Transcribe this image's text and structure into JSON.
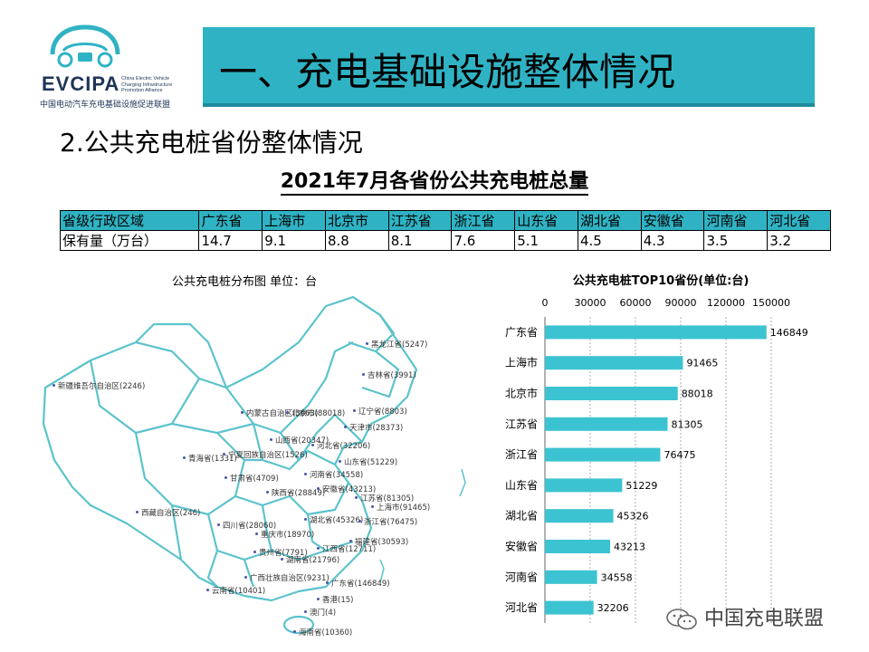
{
  "logo": {
    "brand": "EVCIPA",
    "english": "China Electric Vehicle Charging Infrastructure Promotion Alliance",
    "chinese": "中国电动汽车充电基础设施促进联盟"
  },
  "banner": {
    "title": "一、充电基础设施整体情况"
  },
  "subtitle": "2.公共充电桩省份整体情况",
  "table": {
    "title": "2021年7月各省份公共充电桩总量",
    "row_header_1": "省级行政区域",
    "row_header_2": "保有量（万台）",
    "provinces": [
      "广东省",
      "上海市",
      "北京市",
      "江苏省",
      "浙江省",
      "山东省",
      "湖北省",
      "安徽省",
      "河南省",
      "河北省"
    ],
    "values": [
      "14.7",
      "9.1",
      "8.8",
      "8.1",
      "7.6",
      "5.1",
      "4.5",
      "4.3",
      "3.5",
      "3.2"
    ]
  },
  "map": {
    "title": "公共充电桩分布图    单位：台",
    "labels": [
      {
        "id": "heilongjiang",
        "text": "黑龙江省(5247)"
      },
      {
        "id": "jilin",
        "text": "吉林省(3991)"
      },
      {
        "id": "xinjiang",
        "text": "新疆维吾尔自治区(2246)"
      },
      {
        "id": "neimenggu",
        "text": "内蒙古自治区(3663)"
      },
      {
        "id": "beijing",
        "text": "北京市(88018)"
      },
      {
        "id": "liaoning",
        "text": "辽宁省(8803)"
      },
      {
        "id": "tianjin",
        "text": "天津市(28373)"
      },
      {
        "id": "shanxi",
        "text": "山西省(20347)"
      },
      {
        "id": "hebei",
        "text": "河北省(32206)"
      },
      {
        "id": "qinghai",
        "text": "青海省(1331)"
      },
      {
        "id": "ningxia",
        "text": "宁夏回族自治区(1526)"
      },
      {
        "id": "shandong",
        "text": "山东省(51229)"
      },
      {
        "id": "gansu",
        "text": "甘肃省(4709)"
      },
      {
        "id": "henan",
        "text": "河南省(34558)"
      },
      {
        "id": "shaanxi",
        "text": "陕西省(28849)"
      },
      {
        "id": "anhui",
        "text": "安徽省(43213)"
      },
      {
        "id": "jiangsu",
        "text": "江苏省(81305)"
      },
      {
        "id": "shanghai",
        "text": "上海市(91465)"
      },
      {
        "id": "xizang",
        "text": "西藏自治区(246)"
      },
      {
        "id": "hubei",
        "text": "湖北省(45326)"
      },
      {
        "id": "zhejiang",
        "text": "浙江省(76475)"
      },
      {
        "id": "sichuan",
        "text": "四川省(28060)"
      },
      {
        "id": "chongqing",
        "text": "重庆市(18970)"
      },
      {
        "id": "fujian",
        "text": "福建省(30593)"
      },
      {
        "id": "guizhou",
        "text": "贵州省(7791)"
      },
      {
        "id": "jiangxi",
        "text": "江西省(12711)"
      },
      {
        "id": "hunan",
        "text": "湖南省(21796)"
      },
      {
        "id": "guangxi",
        "text": "广西壮族自治区(9231)"
      },
      {
        "id": "guangdong",
        "text": "广东省(146849)"
      },
      {
        "id": "yunnan",
        "text": "云南省(10401)"
      },
      {
        "id": "xianggang",
        "text": "香港(15)"
      },
      {
        "id": "aomen",
        "text": "澳门(4)"
      },
      {
        "id": "hainan",
        "text": "海南省(10360)"
      }
    ]
  },
  "chart_data": {
    "type": "bar",
    "orientation": "horizontal",
    "title": "公共充电桩TOP10省份(单位:台)",
    "categories": [
      "广东省",
      "上海市",
      "北京市",
      "江苏省",
      "浙江省",
      "山东省",
      "湖北省",
      "安徽省",
      "河南省",
      "河北省"
    ],
    "values": [
      146849,
      91465,
      88018,
      81305,
      76475,
      51229,
      45326,
      43213,
      34558,
      32206
    ],
    "xlim": [
      0,
      150000
    ],
    "xticks": [
      "0",
      "30000",
      "60000",
      "90000",
      "120000",
      "150000"
    ],
    "grid": true,
    "bar_color": "#3cc3d1"
  },
  "watermark": "中国充电联盟"
}
